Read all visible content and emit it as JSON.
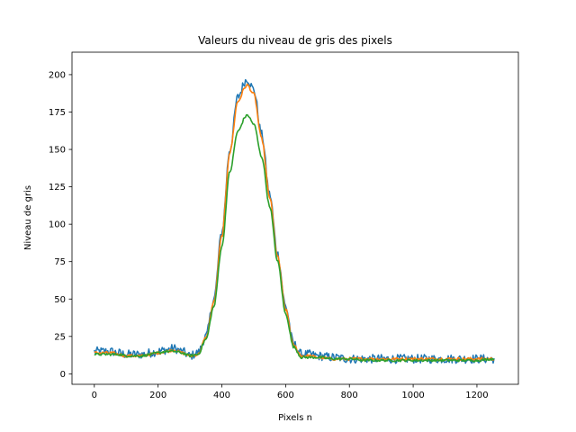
{
  "chart_data": {
    "type": "line",
    "title": "Valeurs du niveau de gris des pixels",
    "xlabel": "Pixels n",
    "ylabel": "Niveau de gris",
    "xlim": [
      -70,
      1330
    ],
    "ylim": [
      -7,
      215
    ],
    "xticks": [
      0,
      200,
      400,
      600,
      800,
      1000,
      1200
    ],
    "yticks": [
      0,
      25,
      50,
      75,
      100,
      125,
      150,
      175,
      200
    ],
    "grid": false,
    "legend": "none",
    "x": [
      0,
      25,
      50,
      75,
      100,
      125,
      150,
      175,
      200,
      225,
      250,
      275,
      300,
      325,
      350,
      375,
      400,
      425,
      450,
      475,
      480,
      500,
      525,
      550,
      575,
      600,
      625,
      650,
      675,
      700,
      750,
      800,
      850,
      900,
      950,
      1000,
      1050,
      1100,
      1150,
      1200,
      1255
    ],
    "series": [
      {
        "color": "#1f77b4",
        "noise": 3,
        "values": [
          15,
          15,
          15,
          14,
          13,
          13,
          13,
          14,
          15,
          16,
          17,
          15,
          12,
          14,
          25,
          50,
          95,
          150,
          185,
          196,
          197,
          190,
          160,
          120,
          80,
          45,
          20,
          13,
          13,
          12,
          11,
          10,
          10,
          10,
          10,
          10,
          10,
          10,
          10,
          10,
          10
        ]
      },
      {
        "color": "#ff7f0e",
        "noise": 1,
        "values": [
          14,
          14,
          14,
          13,
          12,
          12,
          12,
          13,
          14,
          15,
          16,
          14,
          12,
          13,
          24,
          48,
          92,
          148,
          182,
          192,
          193,
          187,
          157,
          118,
          78,
          43,
          19,
          12,
          12,
          11,
          10,
          10,
          10,
          10,
          10,
          10,
          10,
          10,
          10,
          10,
          10
        ]
      },
      {
        "color": "#2ca02c",
        "noise": 0.8,
        "values": [
          13,
          13,
          13,
          13,
          12,
          12,
          12,
          13,
          14,
          15,
          15,
          14,
          12,
          13,
          23,
          45,
          85,
          135,
          162,
          172,
          173,
          167,
          145,
          112,
          75,
          40,
          18,
          11,
          11,
          11,
          10,
          10,
          9,
          9,
          9,
          9,
          9,
          9,
          9,
          9,
          10
        ]
      }
    ]
  }
}
